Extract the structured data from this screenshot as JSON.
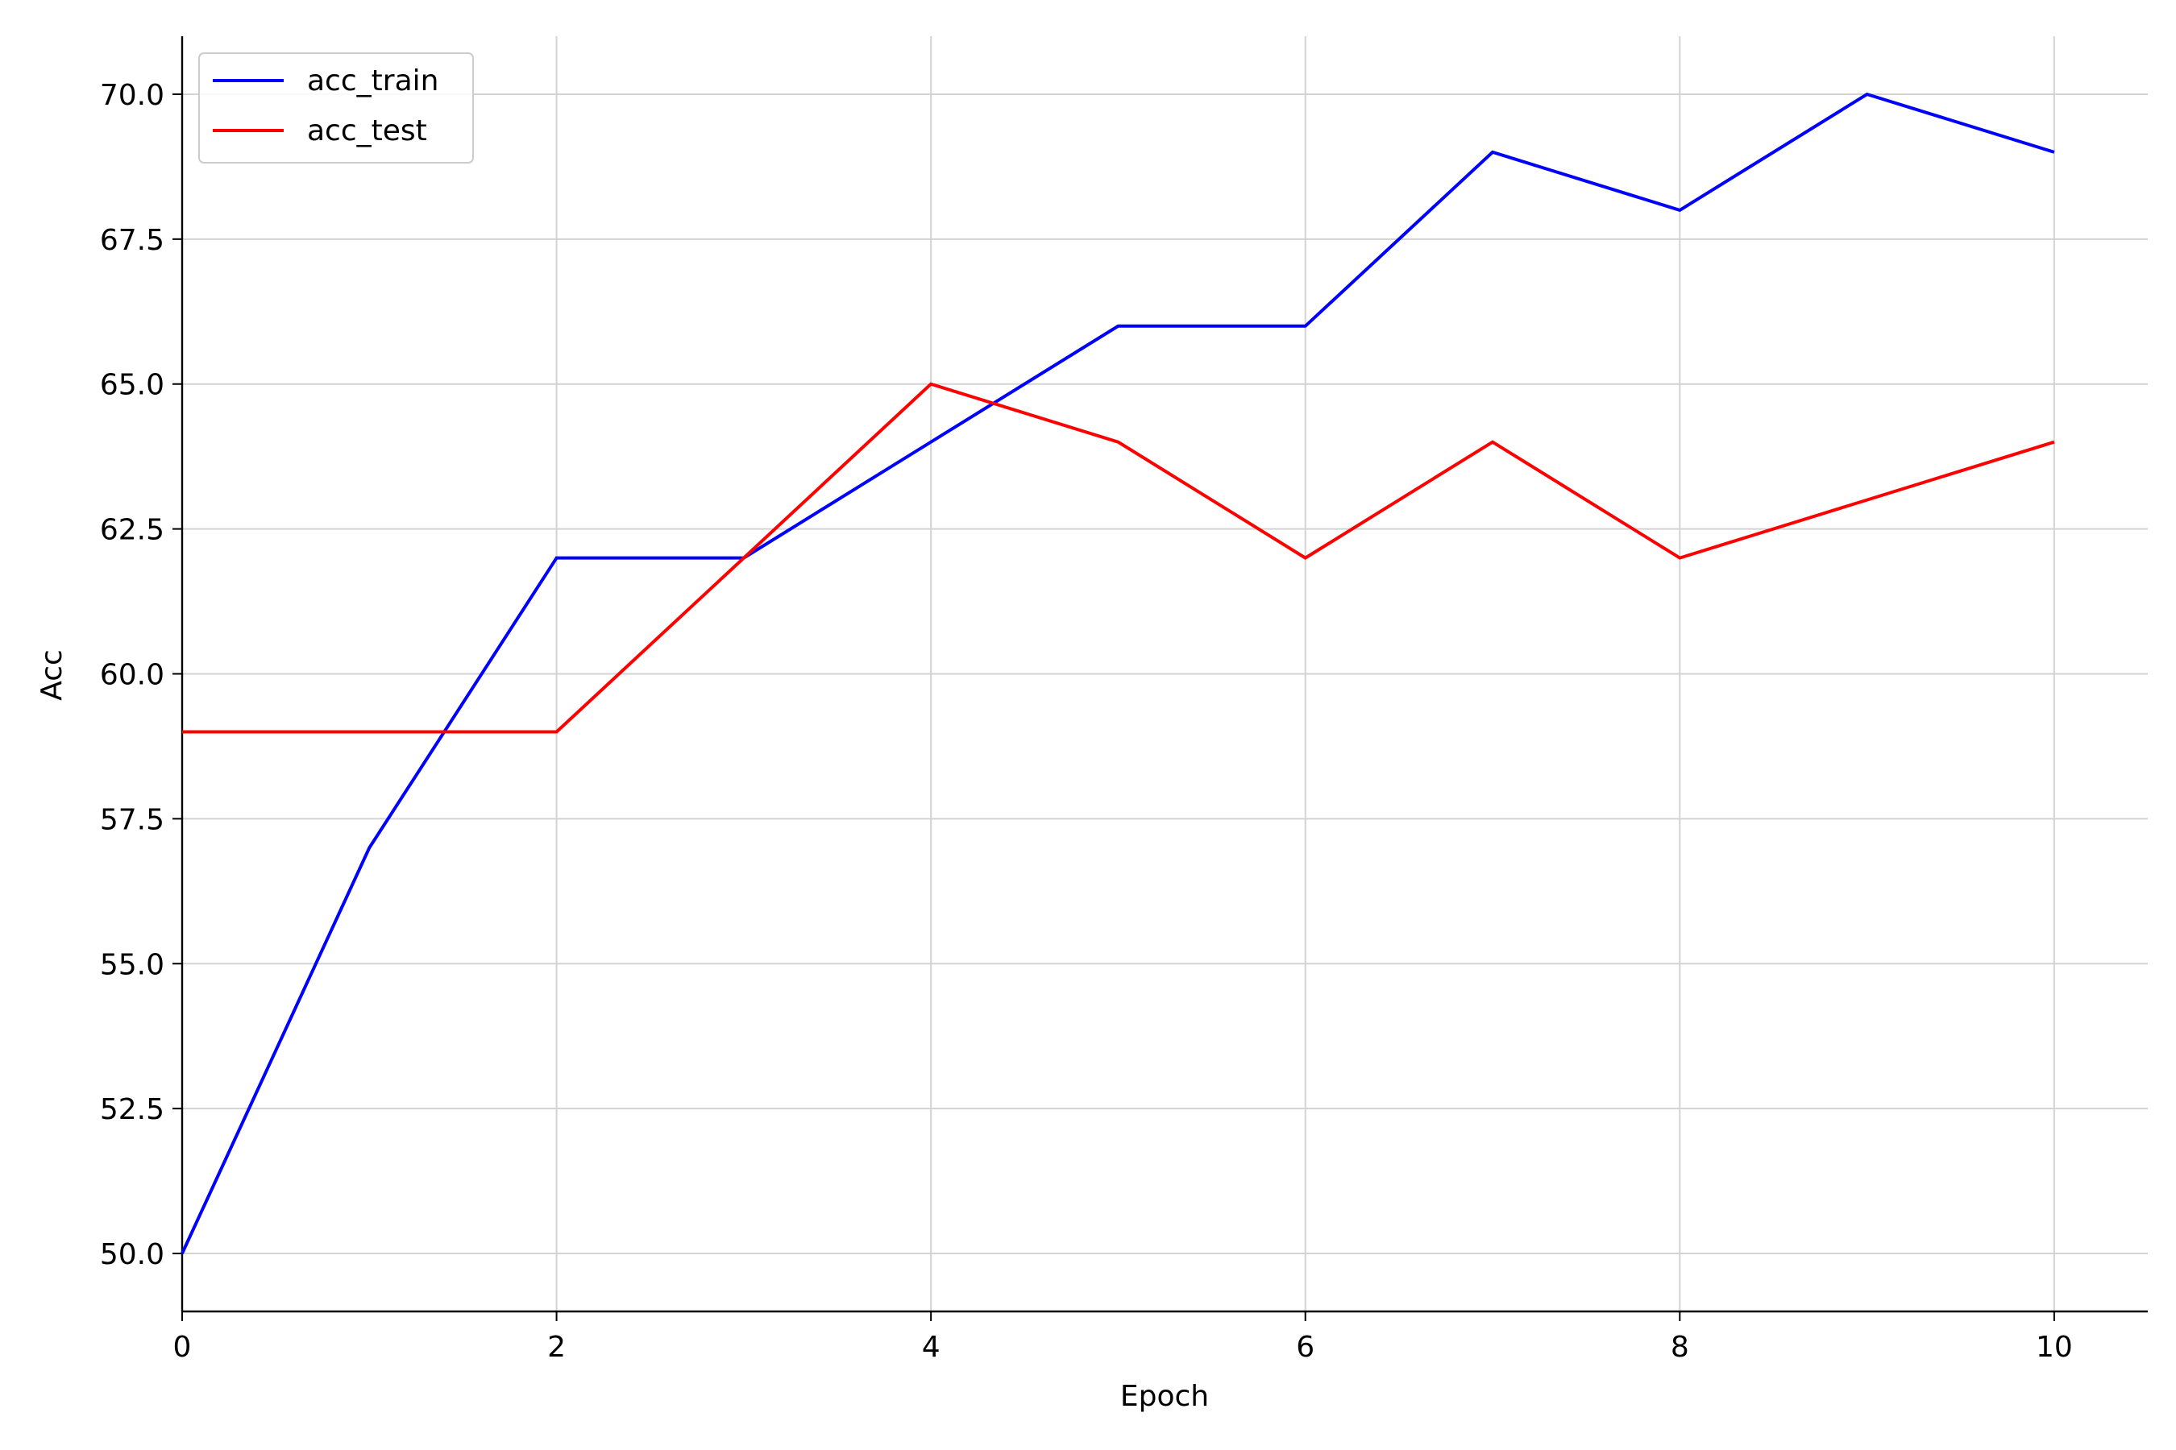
{
  "chart_data": {
    "type": "line",
    "title": "",
    "xlabel": "Epoch",
    "ylabel": "Acc",
    "xlim": [
      0,
      10.5
    ],
    "ylim": [
      49.0,
      71.0
    ],
    "xticks": [
      0,
      2,
      4,
      6,
      8,
      10
    ],
    "xtick_labels": [
      "0",
      "2",
      "4",
      "6",
      "8",
      "10"
    ],
    "yticks": [
      50.0,
      52.5,
      55.0,
      57.5,
      60.0,
      62.5,
      65.0,
      67.5,
      70.0
    ],
    "ytick_labels": [
      "50.0",
      "52.5",
      "55.0",
      "57.5",
      "60.0",
      "62.5",
      "65.0",
      "67.5",
      "70.0"
    ],
    "grid": true,
    "legend_position": "top-left",
    "x": [
      0,
      1,
      2,
      3,
      4,
      5,
      6,
      7,
      8,
      9,
      10
    ],
    "series": [
      {
        "name": "acc_train",
        "color": "#0000ff",
        "values": [
          50,
          57,
          62,
          62,
          64,
          66,
          66,
          69,
          68,
          70,
          69
        ]
      },
      {
        "name": "acc_test",
        "color": "#ff0000",
        "values": [
          59,
          59,
          59,
          62,
          65,
          64,
          62,
          64,
          62,
          63,
          64
        ]
      }
    ]
  }
}
